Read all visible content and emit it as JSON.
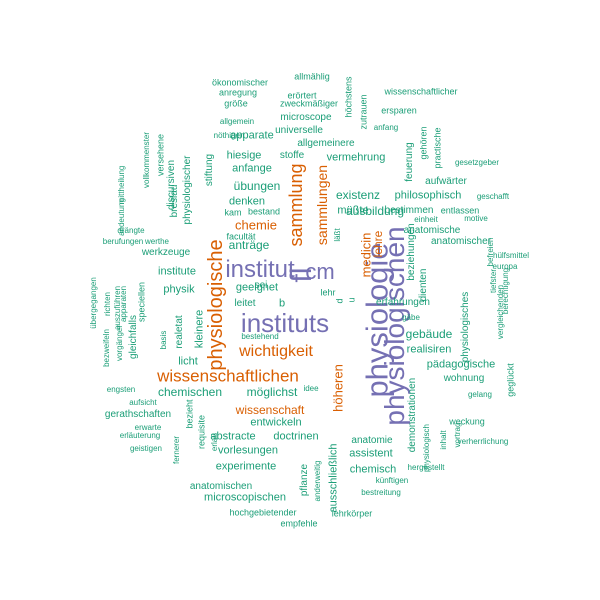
{
  "palette": {
    "teal": "#1b9e77",
    "orange": "#d95f02",
    "purple": "#7570b3"
  },
  "words": [
    {
      "text": "physiologie",
      "color": "purple"
    },
    {
      "text": "physiologischen",
      "color": "purple"
    },
    {
      "text": "instituts",
      "color": "purple"
    },
    {
      "text": "institut",
      "color": "purple"
    },
    {
      "text": "cm",
      "color": "purple"
    },
    {
      "text": "fl",
      "color": "purple"
    },
    {
      "text": "physiologische",
      "color": "orange"
    },
    {
      "text": "wissenschaftlichen",
      "color": "orange"
    },
    {
      "text": "wichtigkeit",
      "color": "orange"
    },
    {
      "text": "sammlung",
      "color": "orange"
    },
    {
      "text": "sammlungen",
      "color": "orange"
    },
    {
      "text": "chemie",
      "color": "orange"
    },
    {
      "text": "wissenschaft",
      "color": "orange"
    },
    {
      "text": "medicin",
      "color": "orange"
    },
    {
      "text": "lehre",
      "color": "orange"
    },
    {
      "text": "höheren",
      "color": "orange"
    },
    {
      "text": "ausschließlich",
      "color": "teal"
    },
    {
      "text": "ökonomischer",
      "color": "teal"
    },
    {
      "text": "allmählig",
      "color": "teal"
    },
    {
      "text": "höchstens",
      "color": "teal"
    },
    {
      "text": "wissenschaftlicher",
      "color": "teal"
    },
    {
      "text": "anregung",
      "color": "teal"
    },
    {
      "text": "erörtert",
      "color": "teal"
    },
    {
      "text": "zutrauen",
      "color": "teal"
    },
    {
      "text": "größe",
      "color": "teal"
    },
    {
      "text": "zweckmäßiger",
      "color": "teal"
    },
    {
      "text": "ersparen",
      "color": "teal"
    },
    {
      "text": "allgemein",
      "color": "teal"
    },
    {
      "text": "microscope",
      "color": "teal"
    },
    {
      "text": "anfang",
      "color": "teal"
    },
    {
      "text": "versehene",
      "color": "teal"
    },
    {
      "text": "universelle",
      "color": "teal"
    },
    {
      "text": "nöthigen",
      "color": "teal"
    },
    {
      "text": "apparate",
      "color": "teal"
    },
    {
      "text": "allgemeinere",
      "color": "teal"
    },
    {
      "text": "gehören",
      "color": "teal"
    },
    {
      "text": "practische",
      "color": "teal"
    },
    {
      "text": "discursiven",
      "color": "teal"
    },
    {
      "text": "vollkommenster",
      "color": "teal"
    },
    {
      "text": "hiesige",
      "color": "teal"
    },
    {
      "text": "stoffe",
      "color": "teal"
    },
    {
      "text": "vermehrung",
      "color": "teal"
    },
    {
      "text": "feuerung",
      "color": "teal"
    },
    {
      "text": "gesetzgeber",
      "color": "teal"
    },
    {
      "text": "physiologischer",
      "color": "teal"
    },
    {
      "text": "anfange",
      "color": "teal"
    },
    {
      "text": "aufwärter",
      "color": "teal"
    },
    {
      "text": "stiftung",
      "color": "teal"
    },
    {
      "text": "breslau",
      "color": "teal"
    },
    {
      "text": "mittheilung",
      "color": "teal"
    },
    {
      "text": "übungen",
      "color": "teal"
    },
    {
      "text": "existenz",
      "color": "teal"
    },
    {
      "text": "philosophisch",
      "color": "teal"
    },
    {
      "text": "geschafft",
      "color": "teal"
    },
    {
      "text": "denken",
      "color": "teal"
    },
    {
      "text": "ausbildung",
      "color": "teal"
    },
    {
      "text": "kam",
      "color": "teal"
    },
    {
      "text": "bestand",
      "color": "teal"
    },
    {
      "text": "müßte",
      "color": "teal"
    },
    {
      "text": "bestimmen",
      "color": "teal"
    },
    {
      "text": "entlassen",
      "color": "teal"
    },
    {
      "text": "motive",
      "color": "teal"
    },
    {
      "text": "andeutung",
      "color": "teal"
    },
    {
      "text": "drängte",
      "color": "teal"
    },
    {
      "text": "facultät",
      "color": "teal"
    },
    {
      "text": "läßt",
      "color": "teal"
    },
    {
      "text": "einheit",
      "color": "teal"
    },
    {
      "text": "anatomische",
      "color": "teal"
    },
    {
      "text": "anatomischer",
      "color": "teal"
    },
    {
      "text": "berufungen",
      "color": "teal"
    },
    {
      "text": "werthe",
      "color": "teal"
    },
    {
      "text": "anträge",
      "color": "teal"
    },
    {
      "text": "werkzeuge",
      "color": "teal"
    },
    {
      "text": "beziehungen",
      "color": "teal"
    },
    {
      "text": "befreien",
      "color": "teal"
    },
    {
      "text": "hülfsmittel",
      "color": "teal"
    },
    {
      "text": "europa",
      "color": "teal"
    },
    {
      "text": "institute",
      "color": "teal"
    },
    {
      "text": "geeignet",
      "color": "teal"
    },
    {
      "text": "dienten",
      "color": "teal"
    },
    {
      "text": "tiefster",
      "color": "teal"
    },
    {
      "text": "berechtigung",
      "color": "teal"
    },
    {
      "text": "vergleichenden",
      "color": "teal"
    },
    {
      "text": "physik",
      "color": "teal"
    },
    {
      "text": "sei",
      "color": "teal"
    },
    {
      "text": "lehr",
      "color": "teal"
    },
    {
      "text": "erfahrungen",
      "color": "teal"
    },
    {
      "text": "übergegangen",
      "color": "teal"
    },
    {
      "text": "richten",
      "color": "teal"
    },
    {
      "text": "auszuführen",
      "color": "teal"
    },
    {
      "text": "apparaten",
      "color": "teal"
    },
    {
      "text": "speciellen",
      "color": "teal"
    },
    {
      "text": "leitet",
      "color": "teal"
    },
    {
      "text": "b",
      "color": "teal"
    },
    {
      "text": "u",
      "color": "teal"
    },
    {
      "text": "d",
      "color": "teal"
    },
    {
      "text": "gäbe",
      "color": "teal"
    },
    {
      "text": "physiologisches",
      "color": "teal"
    },
    {
      "text": "gebäude",
      "color": "teal"
    },
    {
      "text": "kleinere",
      "color": "teal"
    },
    {
      "text": "realetat",
      "color": "teal"
    },
    {
      "text": "basis",
      "color": "teal"
    },
    {
      "text": "bestehend",
      "color": "teal"
    },
    {
      "text": "realisiren",
      "color": "teal"
    },
    {
      "text": "bezweifeln",
      "color": "teal"
    },
    {
      "text": "vorgänger",
      "color": "teal"
    },
    {
      "text": "gleichfalls",
      "color": "teal"
    },
    {
      "text": "licht",
      "color": "teal"
    },
    {
      "text": "pädagogische",
      "color": "teal"
    },
    {
      "text": "wohnung",
      "color": "teal"
    },
    {
      "text": "geglückt",
      "color": "teal"
    },
    {
      "text": "möglichst",
      "color": "teal"
    },
    {
      "text": "chemischen",
      "color": "teal"
    },
    {
      "text": "engsten",
      "color": "teal"
    },
    {
      "text": "aufsicht",
      "color": "teal"
    },
    {
      "text": "idee",
      "color": "teal"
    },
    {
      "text": "gelang",
      "color": "teal"
    },
    {
      "text": "gerathschaften",
      "color": "teal"
    },
    {
      "text": "bezieht",
      "color": "teal"
    },
    {
      "text": "entwickeln",
      "color": "teal"
    },
    {
      "text": "demonstrationen",
      "color": "teal"
    },
    {
      "text": "weckung",
      "color": "teal"
    },
    {
      "text": "erwarte",
      "color": "teal"
    },
    {
      "text": "requisite",
      "color": "teal"
    },
    {
      "text": "abstracte",
      "color": "teal"
    },
    {
      "text": "doctrinen",
      "color": "teal"
    },
    {
      "text": "erläuterung",
      "color": "teal"
    },
    {
      "text": "erlaß",
      "color": "teal"
    },
    {
      "text": "anatomie",
      "color": "teal"
    },
    {
      "text": "inhalt",
      "color": "teal"
    },
    {
      "text": "vortrag",
      "color": "teal"
    },
    {
      "text": "verherrlichung",
      "color": "teal"
    },
    {
      "text": "geistigen",
      "color": "teal"
    },
    {
      "text": "fernerer",
      "color": "teal"
    },
    {
      "text": "vorlesungen",
      "color": "teal"
    },
    {
      "text": "assistent",
      "color": "teal"
    },
    {
      "text": "physiologisch",
      "color": "teal"
    },
    {
      "text": "experimente",
      "color": "teal"
    },
    {
      "text": "chemisch",
      "color": "teal"
    },
    {
      "text": "hergestellt",
      "color": "teal"
    },
    {
      "text": "anderweitig",
      "color": "teal"
    },
    {
      "text": "künftigen",
      "color": "teal"
    },
    {
      "text": "anatomischen",
      "color": "teal"
    },
    {
      "text": "pflanze",
      "color": "teal"
    },
    {
      "text": "bestreitung",
      "color": "teal"
    },
    {
      "text": "microscopischen",
      "color": "teal"
    },
    {
      "text": "hochgebietender",
      "color": "teal"
    },
    {
      "text": "lehrkörper",
      "color": "teal"
    },
    {
      "text": "empfehle",
      "color": "teal"
    }
  ]
}
